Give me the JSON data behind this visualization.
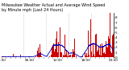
{
  "title_line1": "Milwaukee Weather Actual and Average Wind Speed",
  "title_line2": "by Minute mph (Last 24 Hours)",
  "title_fontsize": 3.5,
  "background_color": "#ffffff",
  "bar_color": "#cc0000",
  "line_color": "#0000bb",
  "ylim": [
    0,
    9
  ],
  "yticks": [
    0,
    1,
    2,
    3,
    4,
    5,
    6,
    7,
    8
  ],
  "n_points": 1440,
  "grid_color": "#999999",
  "tick_fontsize": 3.0,
  "num_vgrid": 5
}
